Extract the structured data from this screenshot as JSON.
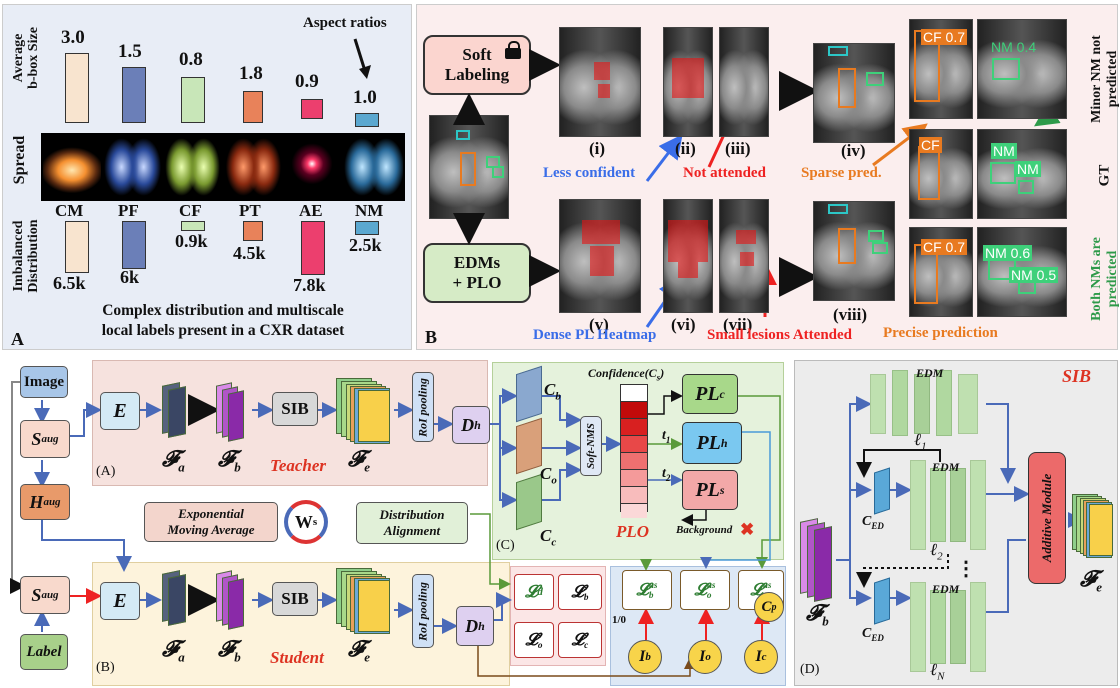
{
  "panelA": {
    "letter": "A",
    "avg_label_1": "Average",
    "avg_label_2": "b-box Size",
    "spread_label": "Spread",
    "imb_label_1": "Imbalanced",
    "imb_label_2": "Distribution",
    "aspect_label": "Aspect ratios",
    "caption_1": "Complex distribution and multiscale",
    "caption_2": "local labels present in a CXR dataset",
    "classes": [
      {
        "name": "CM",
        "size": "3.0",
        "count": "6.5k",
        "color": "#f8e4cf"
      },
      {
        "name": "PF",
        "size": "1.5",
        "count": "6k",
        "color": "#6b7fb8"
      },
      {
        "name": "CF",
        "size": "0.8",
        "count": "0.9k",
        "color": "#c8e6b8"
      },
      {
        "name": "PT",
        "size": "1.8",
        "count": "4.5k",
        "color": "#e8825a"
      },
      {
        "name": "AE",
        "size": "0.9",
        "count": "7.8k",
        "color": "#ec3f6e"
      },
      {
        "name": "NM",
        "size": "1.0",
        "count": "2.5k",
        "color": "#5ba8d0"
      }
    ]
  },
  "panelB": {
    "letter": "B",
    "soft_label_1": "Soft",
    "soft_label_2": "Labeling",
    "edm_label_1": "EDMs",
    "edm_label_2": "+ PLO",
    "romans_top": [
      "(i)",
      "(ii)",
      "(iii)",
      "(iv)"
    ],
    "romans_bot": [
      "(v)",
      "(vi)",
      "(vii)",
      "(viii)"
    ],
    "less_confident": "Less confident",
    "not_attended": "Not attended",
    "sparse_pred": "Sparse pred.",
    "dense_pl": "Dense PL Heatmap",
    "small_lesions": "Small lesions Attended",
    "precise_pred": "Precise prediction",
    "side_top_1": "Minor NM not",
    "side_top_2": "predicted",
    "side_gt": "GT",
    "side_bot_1": "Both NMs are",
    "side_bot_2": "predicted",
    "box_cf": "CF 0.7",
    "box_nm_top": "NM 0.4",
    "box_cf_gt": "CF",
    "box_nm_gt": "NM",
    "box_nm_06": "NM 0.6",
    "box_nm_05": "NM 0.5",
    "small_cf": "CF",
    "small_nm": "NM"
  },
  "panelC": {
    "image": "Image",
    "s_aug": "S",
    "s_aug_sub": "aug",
    "h_aug": "H",
    "h_aug_sub": "aug",
    "label": "Label",
    "E": "E",
    "F": "𝓕",
    "a": "a",
    "b": "b",
    "e": "e",
    "sib": "SIB",
    "roi": "RoI pooling",
    "D": "D",
    "h": "h",
    "teacher": "Teacher",
    "student": "Student",
    "A_tag": "(A)",
    "B_tag": "(B)",
    "C_tag": "(C)",
    "ema_1": "Exponential",
    "ema_2": "Moving Average",
    "ws": "W",
    "ws_sub": "s",
    "dist_1": "Distribution",
    "dist_2": "Alignment",
    "confidence": "Confidence(C",
    "confidence_sub": "s",
    "C": "C",
    "cb": "b",
    "co": "o",
    "cc": "c",
    "soft_nms": "Soft-NMS",
    "PL": "PL",
    "plc": "c",
    "plh": "h",
    "pls": "s",
    "t1": "t",
    "t1_sub": "1",
    "t2": "t",
    "t2_sub": "2",
    "plo": "PLO",
    "background": "Background",
    "Ld": "𝓛",
    "Ld_sub": "d",
    "Lbs": "𝓛",
    "Lbs_sub": "b",
    "Lbs_sup": "s",
    "Los_sub": "o",
    "Lcs_sub": "c",
    "us": "us",
    "I": "I",
    "Ib": "b",
    "Io": "o",
    "Ic": "c",
    "Cp": "C",
    "Cp_sub": "p",
    "one_zero": "1/0"
  },
  "panelD": {
    "title": "SIB",
    "edm": "EDM",
    "ell": "ℓ",
    "ell1": "1",
    "ell2": "2",
    "ellN": "N",
    "ced": "C",
    "ced_sub": "ED",
    "additive": "Additive Module",
    "fb": "𝓕",
    "fb_sub": "b",
    "fe": "𝓕",
    "fe_sub": "e",
    "D_tag": "(D)",
    "dots": "⋮"
  }
}
